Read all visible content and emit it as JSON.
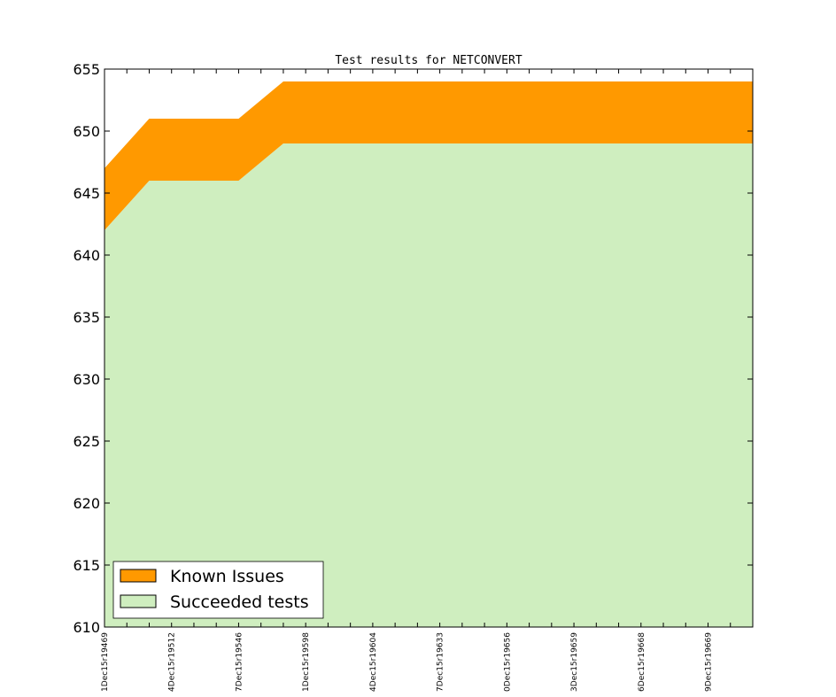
{
  "chart_data": {
    "type": "area",
    "title": "Test results for NETCONVERT",
    "xlabel": "",
    "ylabel": "",
    "ylim": [
      610,
      655
    ],
    "yticks": [
      610,
      615,
      620,
      625,
      630,
      635,
      640,
      645,
      650,
      655
    ],
    "x_tick_labels": [
      "1Dec15r19469",
      "4Dec15r19512",
      "7Dec15r19546",
      "1Dec15r19598",
      "4Dec15r19604",
      "7Dec15r19633",
      "0Dec15r19656",
      "3Dec15r19659",
      "6Dec15r19668",
      "9Dec15r19669"
    ],
    "x_tick_label_every": 3,
    "series": [
      {
        "name": "Succeeded tests",
        "color": "#cfeebf",
        "values": [
          642,
          644,
          646,
          646,
          646,
          646,
          646,
          647.5,
          649,
          649,
          649,
          649,
          649,
          649,
          649,
          649,
          649,
          649,
          649,
          649,
          649,
          649,
          649,
          649,
          649,
          649,
          649,
          649,
          649,
          649
        ]
      },
      {
        "name": "Known Issues",
        "color": "#ff9900",
        "values": [
          5,
          5,
          5,
          5,
          5,
          5,
          5,
          5,
          5,
          5,
          5,
          5,
          5,
          5,
          5,
          5,
          5,
          5,
          5,
          5,
          5,
          5,
          5,
          5,
          5,
          5,
          5,
          5,
          5,
          5
        ]
      }
    ],
    "legend": {
      "placement": "lower-left",
      "entries": [
        "Known Issues",
        "Succeeded tests"
      ]
    },
    "grid": false
  }
}
